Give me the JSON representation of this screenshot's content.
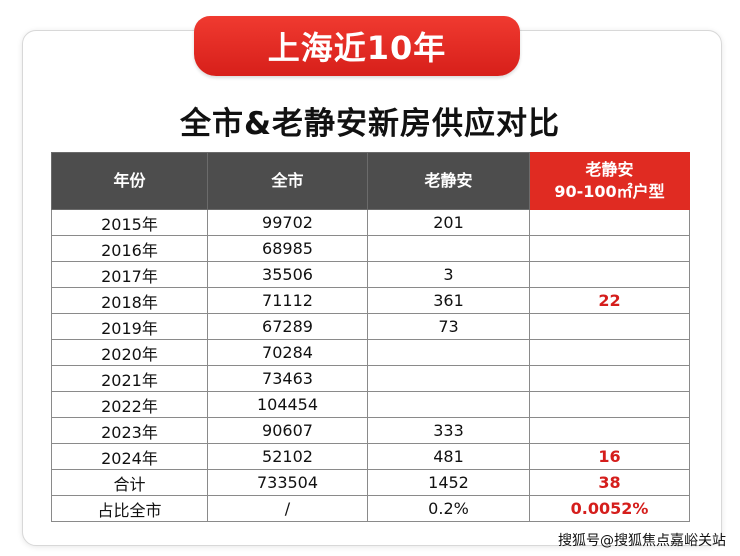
{
  "banner": {
    "title": "上海近10年"
  },
  "heading": "全市&老静安新房供应对比",
  "table": {
    "headers": [
      "年份",
      "全市",
      "老静安",
      "老静安",
      "90-100㎡户型"
    ],
    "rows": [
      [
        "2015年",
        "99702",
        "201",
        ""
      ],
      [
        "2016年",
        "68985",
        "",
        ""
      ],
      [
        "2017年",
        "35506",
        "3",
        ""
      ],
      [
        "2018年",
        "71112",
        "361",
        "22"
      ],
      [
        "2019年",
        "67289",
        "73",
        ""
      ],
      [
        "2020年",
        "70284",
        "",
        ""
      ],
      [
        "2021年",
        "73463",
        "",
        ""
      ],
      [
        "2022年",
        "104454",
        "",
        ""
      ],
      [
        "2023年",
        "90607",
        "333",
        ""
      ],
      [
        "2024年",
        "52102",
        "481",
        "16"
      ],
      [
        "合计",
        "733504",
        "1452",
        "38"
      ],
      [
        "占比全市",
        "/",
        "0.2%",
        "0.0052%"
      ]
    ]
  },
  "colors": {
    "accent_red": "#e02b22",
    "header_gray": "#4d4d4d"
  },
  "watermark": "搜狐号@搜狐焦点嘉峪关站"
}
